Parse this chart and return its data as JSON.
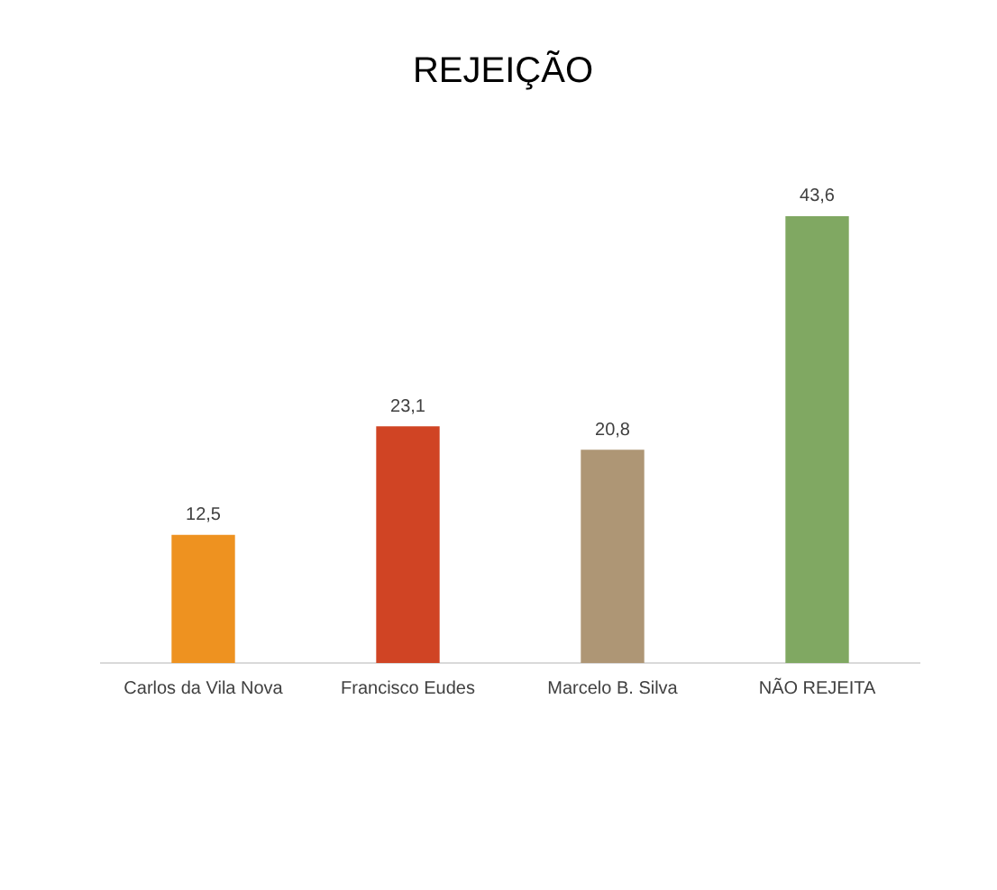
{
  "chart_data": {
    "type": "bar",
    "title": "REJEIÇÃO",
    "categories": [
      "Carlos da Vila Nova",
      "Francisco Eudes",
      "Marcelo B. Silva",
      "NÃO REJEITA"
    ],
    "values": [
      12.5,
      23.1,
      20.8,
      43.6
    ],
    "colors": [
      "#ee9220",
      "#d04424",
      "#ae9675",
      "#80a862"
    ],
    "value_labels": [
      "12,5",
      "23,1",
      "20,8",
      "43,6"
    ],
    "relative": false,
    "grid": false,
    "legend": false
  }
}
